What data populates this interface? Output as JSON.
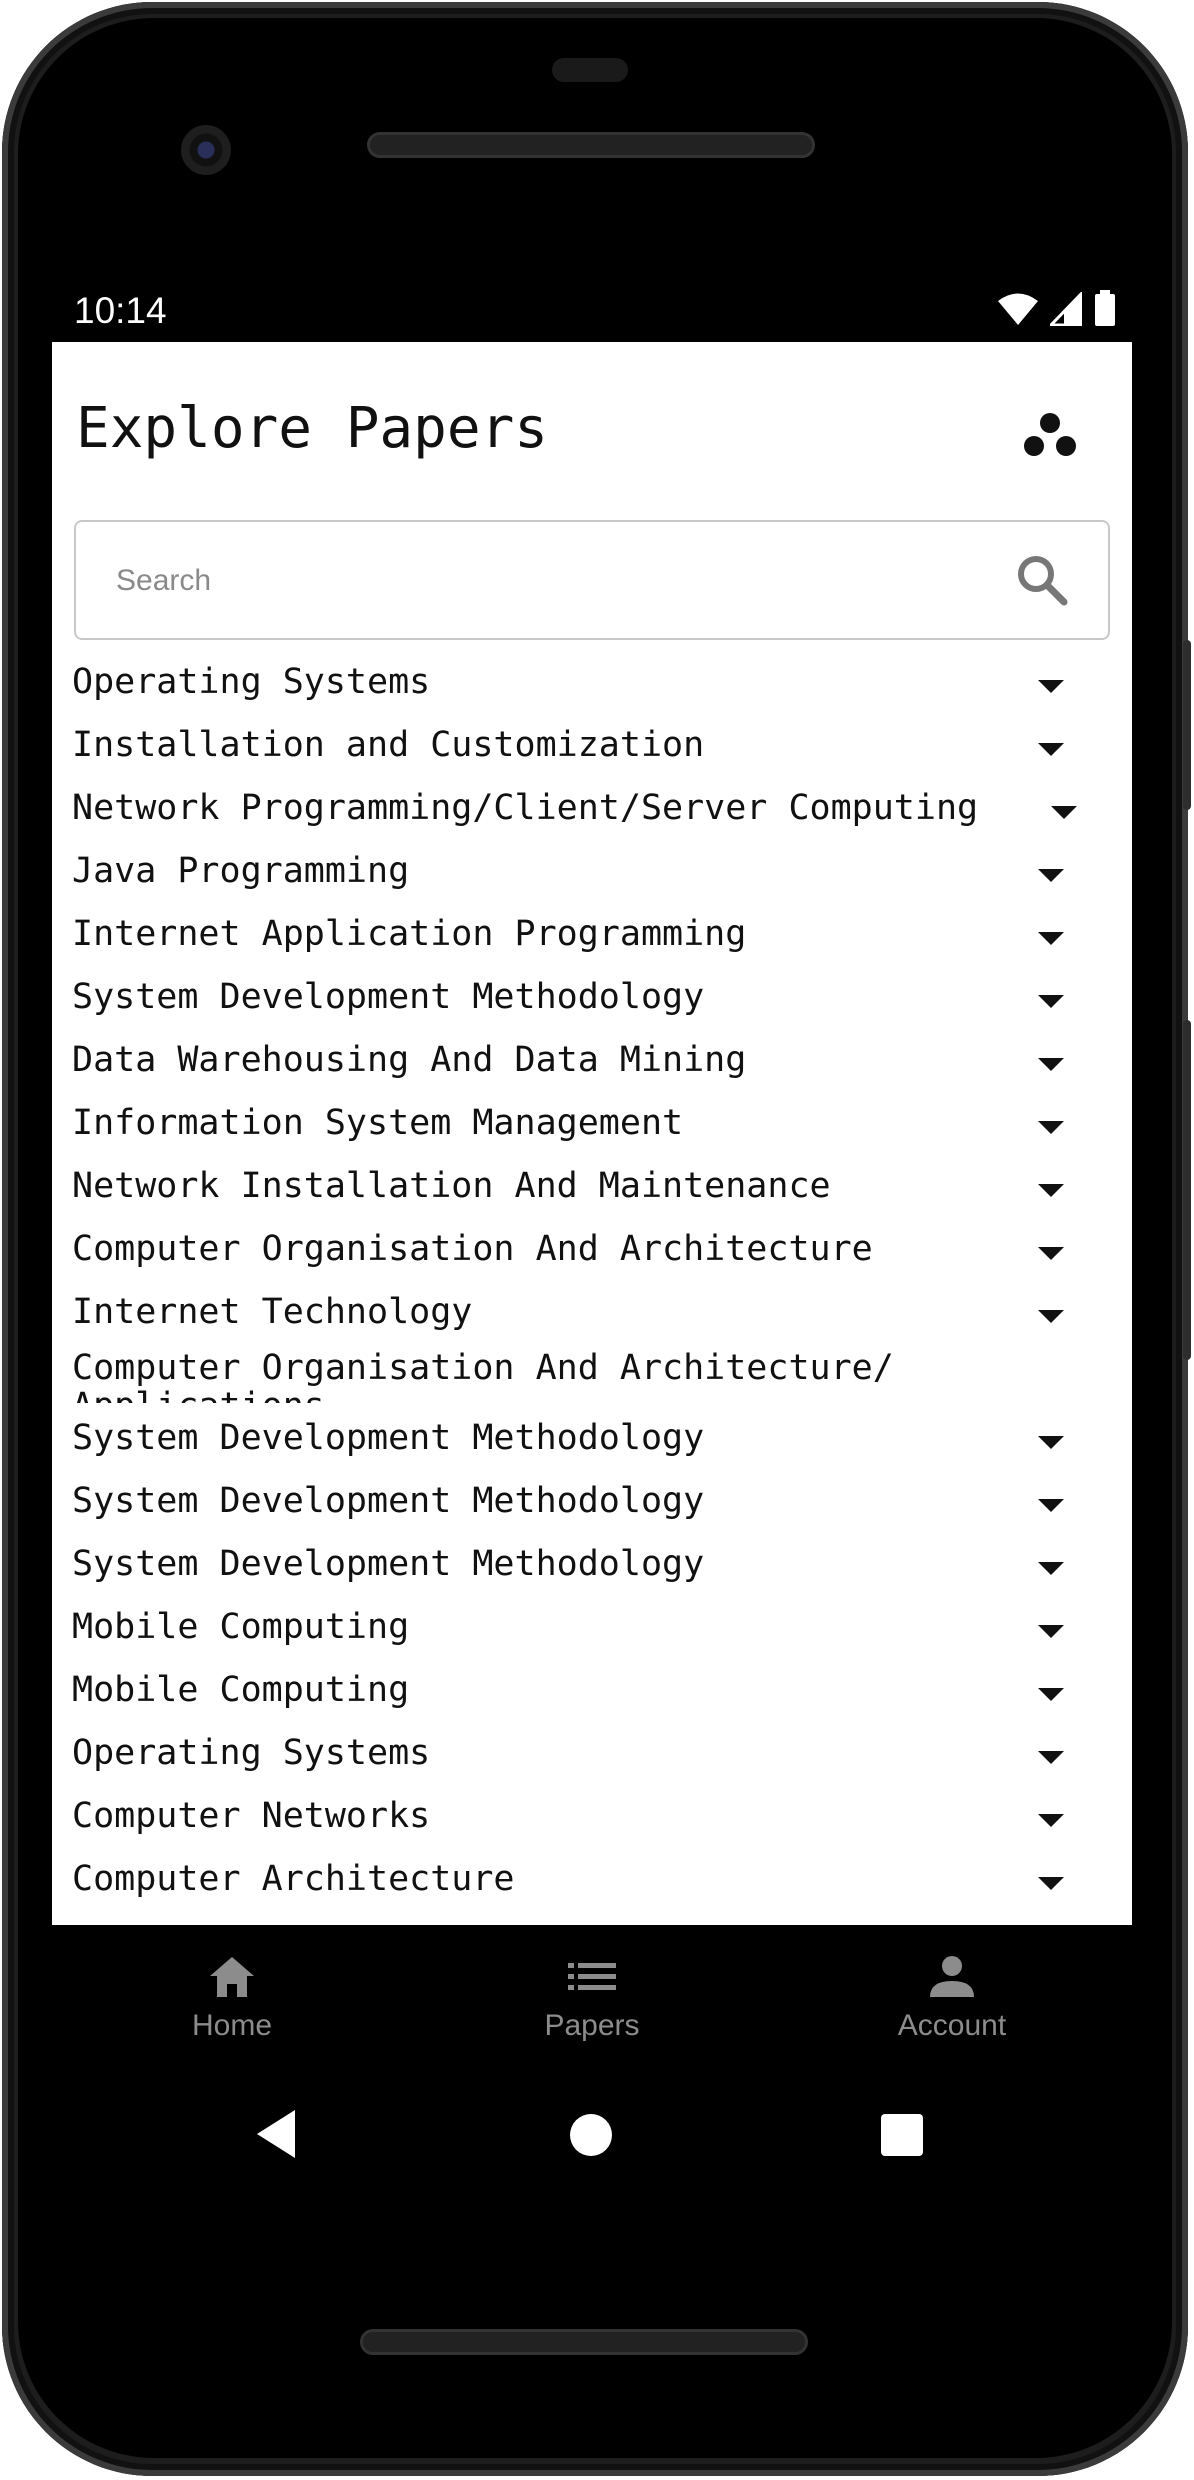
{
  "status_bar": {
    "time": "10:14"
  },
  "header": {
    "title": "Explore Papers",
    "menu_icon": "three-dots-cluster-icon"
  },
  "search": {
    "placeholder": "Search",
    "value": ""
  },
  "papers": [
    "Operating Systems",
    "Installation and Customization",
    "Network Programming/Client/Server Computing",
    "Java Programming",
    "Internet Application Programming",
    "System Development Methodology",
    "Data Warehousing And Data Mining",
    "Information System Management",
    "Network Installation And Maintenance",
    "Computer Organisation And Architecture",
    "Internet Technology",
    "Computer Organisation And Architecture/ Applications",
    "System Development Methodology",
    "System Development Methodology",
    "System Development Methodology",
    "Mobile Computing",
    "Mobile Computing",
    "Operating Systems",
    "Computer Networks",
    "Computer Architecture"
  ],
  "bottom_nav": {
    "items": [
      {
        "label": "Home",
        "icon": "home-icon"
      },
      {
        "label": "Papers",
        "icon": "list-icon"
      },
      {
        "label": "Account",
        "icon": "person-icon"
      }
    ]
  },
  "colors": {
    "app_bg": "#ffffff",
    "frame": "#000000",
    "nav_inactive": "#8c8c8c"
  }
}
